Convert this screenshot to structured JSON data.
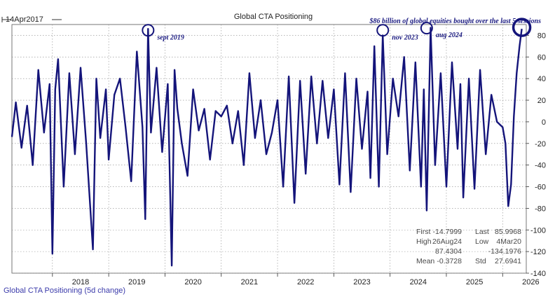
{
  "chart_data": {
    "type": "line",
    "title": "Global CTA Positioning",
    "start_label": "14Apr2017",
    "headline": "$86 billion of global equities bought over the last 5 sessions",
    "legend": "Global CTA Positioning (5d change)",
    "ylim": [
      -140,
      90
    ],
    "yticks": [
      80,
      60,
      40,
      20,
      0,
      -20,
      -40,
      -60,
      -80,
      -100,
      -120,
      -140
    ],
    "xlim": [
      2017.28,
      2026.42
    ],
    "xticks": [
      "2018",
      "2019",
      "2020",
      "2021",
      "2022",
      "2023",
      "2024",
      "2025",
      "2026"
    ],
    "grid": true,
    "annotations": [
      {
        "label": "sept 2019",
        "x": 2019.7,
        "y": 84
      },
      {
        "label": "nov 2023",
        "x": 2023.87,
        "y": 84
      },
      {
        "label": "aug 2024",
        "x": 2024.65,
        "y": 86
      },
      {
        "label": "",
        "x": 2026.34,
        "y": 86
      }
    ],
    "stats": [
      {
        "label": "First",
        "value": "-14.7999",
        "label2": "Last",
        "value2": "85.9968"
      },
      {
        "label": "High",
        "value": "26Aug24",
        "label2": "Low",
        "value2": "4Mar20"
      },
      {
        "label": "",
        "value": "87.4304",
        "label2": "",
        "value2": "-134.1976"
      },
      {
        "label": "Mean",
        "value": "-0.3728",
        "label2": "Std",
        "value2": "27.6941"
      }
    ],
    "series": [
      {
        "color": "#14147a",
        "x": [
          2017.28,
          2017.35,
          2017.45,
          2017.55,
          2017.65,
          2017.75,
          2017.85,
          2017.95,
          2018.0,
          2018.05,
          2018.1,
          2018.2,
          2018.3,
          2018.4,
          2018.5,
          2018.6,
          2018.72,
          2018.78,
          2018.85,
          2018.95,
          2019.0,
          2019.1,
          2019.2,
          2019.3,
          2019.4,
          2019.5,
          2019.6,
          2019.65,
          2019.7,
          2019.75,
          2019.85,
          2019.95,
          2020.05,
          2020.12,
          2020.17,
          2020.22,
          2020.3,
          2020.4,
          2020.5,
          2020.6,
          2020.7,
          2020.8,
          2020.9,
          2021.0,
          2021.1,
          2021.2,
          2021.3,
          2021.4,
          2021.5,
          2021.6,
          2021.7,
          2021.8,
          2021.9,
          2022.0,
          2022.1,
          2022.2,
          2022.3,
          2022.4,
          2022.5,
          2022.6,
          2022.7,
          2022.8,
          2022.9,
          2023.0,
          2023.1,
          2023.2,
          2023.3,
          2023.4,
          2023.5,
          2023.6,
          2023.65,
          2023.72,
          2023.8,
          2023.87,
          2023.95,
          2024.05,
          2024.15,
          2024.25,
          2024.35,
          2024.45,
          2024.55,
          2024.6,
          2024.65,
          2024.72,
          2024.8,
          2024.9,
          2025.0,
          2025.1,
          2025.2,
          2025.25,
          2025.3,
          2025.4,
          2025.5,
          2025.6,
          2025.7,
          2025.8,
          2025.9,
          2026.0,
          2026.05,
          2026.1,
          2026.15,
          2026.2,
          2026.25,
          2026.3,
          2026.34
        ],
        "y": [
          -14,
          18,
          -24,
          15,
          -40,
          48,
          -10,
          35,
          -122,
          30,
          58,
          -60,
          45,
          -30,
          50,
          -20,
          -118,
          40,
          -15,
          30,
          -35,
          25,
          40,
          -5,
          -55,
          65,
          -5,
          -90,
          86,
          -10,
          50,
          -28,
          35,
          -133,
          48,
          12,
          -20,
          -50,
          30,
          -8,
          12,
          -35,
          10,
          5,
          15,
          -20,
          10,
          -40,
          45,
          -15,
          20,
          -30,
          -10,
          20,
          -60,
          42,
          -75,
          38,
          -48,
          42,
          -20,
          38,
          -15,
          30,
          -58,
          45,
          -65,
          40,
          -25,
          28,
          -52,
          70,
          -60,
          80,
          -30,
          40,
          5,
          60,
          -45,
          55,
          -60,
          30,
          -82,
          87,
          -40,
          45,
          -60,
          55,
          -25,
          35,
          -70,
          40,
          -62,
          48,
          -30,
          25,
          0,
          -5,
          -20,
          -78,
          -58,
          5,
          45,
          70,
          86
        ]
      }
    ]
  }
}
